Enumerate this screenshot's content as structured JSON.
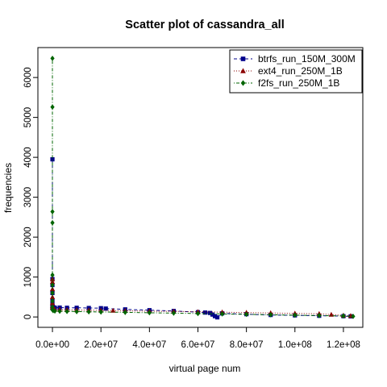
{
  "chart_data": {
    "type": "scatter",
    "title": "Scatter plot of cassandra_all",
    "xlabel": "virtual page num",
    "ylabel": "frequencies",
    "xlim": [
      -6000000,
      128000000
    ],
    "ylim": [
      -260,
      6750
    ],
    "x_ticks": [
      0,
      20000000,
      40000000,
      60000000,
      80000000,
      100000000,
      120000000
    ],
    "x_tick_labels": [
      "0.0e+00",
      "2.0e+07",
      "4.0e+07",
      "6.0e+07",
      "8.0e+07",
      "1.0e+08",
      "1.2e+08"
    ],
    "y_ticks": [
      0,
      1000,
      2000,
      3000,
      4000,
      5000,
      6000
    ],
    "y_tick_labels": [
      "0",
      "1000",
      "2000",
      "3000",
      "4000",
      "5000",
      "6000"
    ],
    "grid": false,
    "legend_position": "top-right",
    "series": [
      {
        "name": "btrfs_run_150M_300M",
        "color": "#00008b",
        "marker": "square",
        "line": "dashed",
        "x": [
          0,
          0,
          0,
          0,
          0,
          0,
          0,
          0,
          200000,
          500000,
          1000000,
          3000000,
          6000000,
          10000000,
          15000000,
          20000000,
          22000000,
          30000000,
          40000000,
          50000000,
          60000000,
          63000000,
          65000000,
          66000000,
          67000000,
          68000000,
          70000000,
          80000000,
          90000000,
          100000000,
          110000000,
          120000000,
          123000000
        ],
        "y": [
          3950,
          950,
          800,
          600,
          400,
          300,
          250,
          220,
          210,
          240,
          230,
          235,
          230,
          230,
          225,
          220,
          210,
          190,
          170,
          150,
          120,
          110,
          100,
          60,
          20,
          -10,
          90,
          70,
          50,
          40,
          30,
          20,
          15
        ]
      },
      {
        "name": "ext4_run_250M_1B",
        "color": "#8b0000",
        "marker": "triangle",
        "line": "dotted",
        "x": [
          0,
          0,
          0,
          0,
          0,
          0,
          0,
          500000,
          1000000,
          3000000,
          6000000,
          10000000,
          15000000,
          20000000,
          25000000,
          30000000,
          40000000,
          50000000,
          60000000,
          70000000,
          80000000,
          90000000,
          100000000,
          110000000,
          115000000,
          120000000,
          123000000
        ],
        "y": [
          950,
          880,
          700,
          500,
          350,
          280,
          240,
          200,
          190,
          185,
          180,
          175,
          170,
          165,
          160,
          155,
          145,
          140,
          130,
          120,
          110,
          100,
          90,
          80,
          60,
          40,
          30
        ]
      },
      {
        "name": "f2fs_run_250M_1B",
        "color": "#006400",
        "marker": "diamond",
        "line": "dotdash",
        "x": [
          0,
          0,
          0,
          0,
          0,
          0,
          0,
          0,
          0,
          0,
          300000,
          1000000,
          3000000,
          6000000,
          10000000,
          15000000,
          20000000,
          30000000,
          40000000,
          50000000,
          60000000,
          70000000,
          80000000,
          90000000,
          100000000,
          110000000,
          120000000,
          124000000
        ],
        "y": [
          6480,
          5260,
          2640,
          2360,
          1050,
          800,
          600,
          400,
          250,
          180,
          160,
          150,
          145,
          140,
          135,
          130,
          125,
          115,
          105,
          95,
          85,
          75,
          65,
          55,
          45,
          35,
          25,
          15
        ]
      }
    ]
  }
}
